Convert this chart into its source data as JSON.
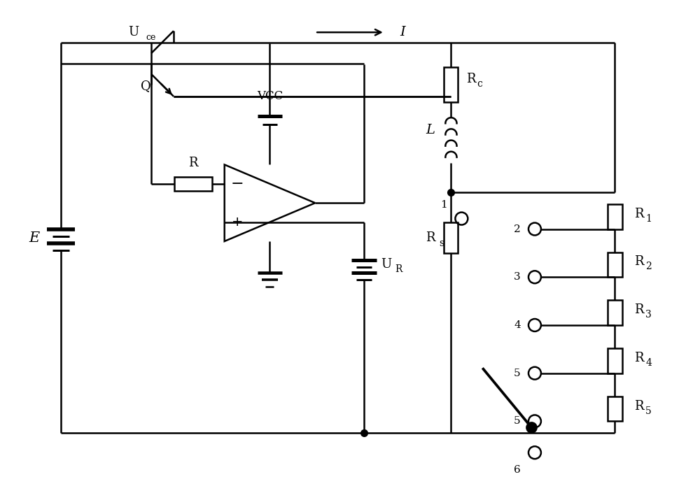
{
  "bg_color": "#ffffff",
  "line_color": "#000000",
  "lw": 1.8,
  "fig_width": 10.0,
  "fig_height": 6.95,
  "xlim": [
    0,
    10
  ],
  "ylim": [
    0,
    6.95
  ]
}
